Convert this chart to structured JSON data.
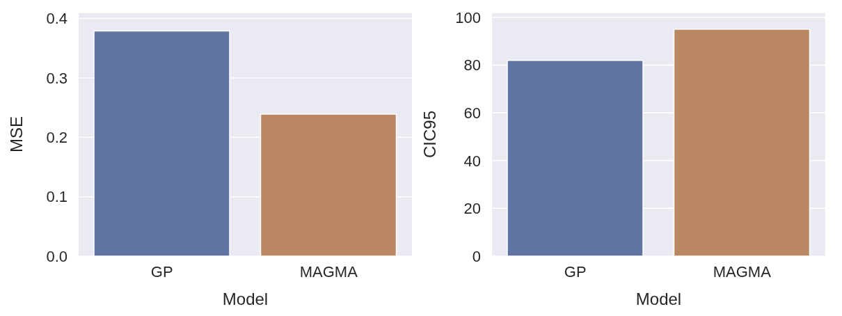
{
  "chart_data": [
    {
      "type": "bar",
      "categories": [
        "GP",
        "MAGMA"
      ],
      "values": [
        0.379,
        0.239
      ],
      "colors": [
        "#5f74a0",
        "#b98863"
      ],
      "xlabel": "Model",
      "ylabel": "MSE",
      "ylim": [
        0,
        0.41
      ],
      "yticks": [
        {
          "value": 0,
          "label": "0.0"
        },
        0.1,
        0.2,
        0.3,
        0.4
      ],
      "grid": "y"
    },
    {
      "type": "bar",
      "categories": [
        "GP",
        "MAGMA"
      ],
      "values": [
        82,
        95
      ],
      "colors": [
        "#5f74a0",
        "#b98863"
      ],
      "xlabel": "Model",
      "ylabel": "CIC95",
      "ylim": [
        0,
        102
      ],
      "yticks": [
        0,
        20,
        40,
        60,
        80,
        100
      ],
      "grid": "y"
    }
  ]
}
